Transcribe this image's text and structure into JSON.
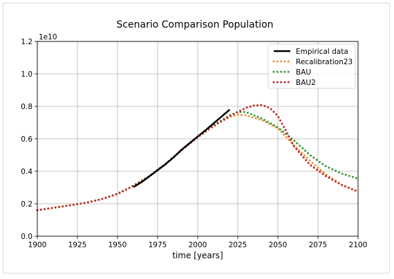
{
  "chart_data": {
    "type": "line",
    "title": "Scenario Comparison Population",
    "xlabel": "time [years]",
    "ylabel": "",
    "y_offset_label": "1e10",
    "xlim": [
      1900,
      2100
    ],
    "ylim": [
      0.0,
      1.2
    ],
    "xticks": [
      1900,
      1925,
      1950,
      1975,
      2000,
      2025,
      2050,
      2075,
      2100
    ],
    "yticks": [
      0.0,
      0.2,
      0.4,
      0.6,
      0.8,
      1.0,
      1.2
    ],
    "xtick_labels": [
      "1900",
      "1925",
      "1950",
      "1975",
      "2000",
      "2025",
      "2050",
      "2075",
      "2100"
    ],
    "ytick_labels": [
      "0.0",
      "0.2",
      "0.4",
      "0.6",
      "0.8",
      "1.0",
      "1.2"
    ],
    "grid": true,
    "legend_position": "top-right",
    "series": [
      {
        "name": "Empirical data",
        "color": "#000000",
        "style": "solid",
        "x": [
          1960,
          1965,
          1970,
          1975,
          1980,
          1985,
          1990,
          1995,
          2000,
          2005,
          2010,
          2015,
          2020
        ],
        "y": [
          0.303,
          0.333,
          0.37,
          0.407,
          0.444,
          0.486,
          0.533,
          0.574,
          0.614,
          0.654,
          0.696,
          0.738,
          0.78
        ]
      },
      {
        "name": "Recalibration23",
        "color": "#e8963a",
        "style": "dotted",
        "x": [
          1900,
          1910,
          1920,
          1930,
          1940,
          1950,
          1960,
          1970,
          1980,
          1990,
          2000,
          2010,
          2020,
          2025,
          2030,
          2040,
          2050,
          2060,
          2070,
          2080,
          2090,
          2100
        ],
        "y": [
          0.16,
          0.175,
          0.19,
          0.205,
          0.228,
          0.26,
          0.31,
          0.37,
          0.445,
          0.53,
          0.61,
          0.68,
          0.735,
          0.748,
          0.745,
          0.715,
          0.665,
          0.56,
          0.465,
          0.38,
          0.315,
          0.275
        ]
      },
      {
        "name": "BAU",
        "color": "#3d9a3d",
        "style": "dotted",
        "x": [
          1900,
          1910,
          1920,
          1930,
          1940,
          1950,
          1960,
          1970,
          1980,
          1990,
          2000,
          2010,
          2020,
          2025,
          2030,
          2040,
          2050,
          2060,
          2070,
          2080,
          2090,
          2100
        ],
        "y": [
          0.16,
          0.175,
          0.19,
          0.205,
          0.228,
          0.262,
          0.312,
          0.372,
          0.447,
          0.532,
          0.612,
          0.685,
          0.745,
          0.765,
          0.765,
          0.725,
          0.67,
          0.59,
          0.5,
          0.43,
          0.385,
          0.355
        ]
      },
      {
        "name": "BAU2",
        "color": "#c0302b",
        "style": "dotted",
        "x": [
          1900,
          1910,
          1920,
          1930,
          1940,
          1950,
          1960,
          1970,
          1980,
          1990,
          2000,
          2010,
          2020,
          2025,
          2030,
          2035,
          2040,
          2045,
          2050,
          2055,
          2060,
          2070,
          2080,
          2090,
          2100
        ],
        "y": [
          0.16,
          0.175,
          0.19,
          0.205,
          0.228,
          0.26,
          0.31,
          0.37,
          0.445,
          0.53,
          0.61,
          0.68,
          0.74,
          0.765,
          0.79,
          0.805,
          0.808,
          0.79,
          0.74,
          0.65,
          0.555,
          0.44,
          0.37,
          0.315,
          0.275
        ]
      }
    ]
  }
}
